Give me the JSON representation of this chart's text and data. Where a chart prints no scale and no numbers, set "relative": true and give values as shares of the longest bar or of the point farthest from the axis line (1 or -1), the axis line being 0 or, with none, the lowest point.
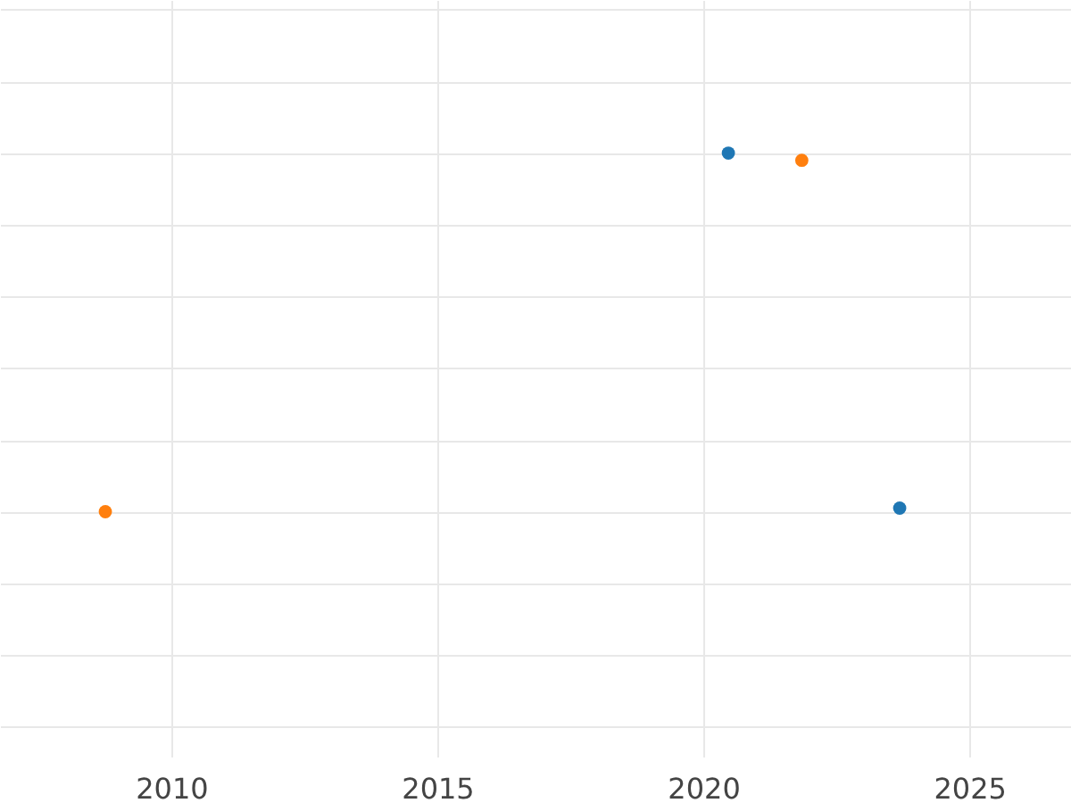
{
  "chart_data": {
    "type": "scatter",
    "relative": true,
    "series": [
      {
        "color": "#1f77b4",
        "x": [
          2020.47,
          2023.69
        ],
        "values": [
          1,
          0.01
        ]
      },
      {
        "color": "#ff7f0e",
        "x": [
          2021.85,
          2008.76
        ],
        "values": [
          0.98,
          0
        ]
      }
    ],
    "xlim": [
      2006.78,
      2026.91
    ],
    "xticks": [
      2010,
      2015,
      2020,
      2025
    ],
    "grid": true,
    "marker": "circle",
    "legend": false
  }
}
